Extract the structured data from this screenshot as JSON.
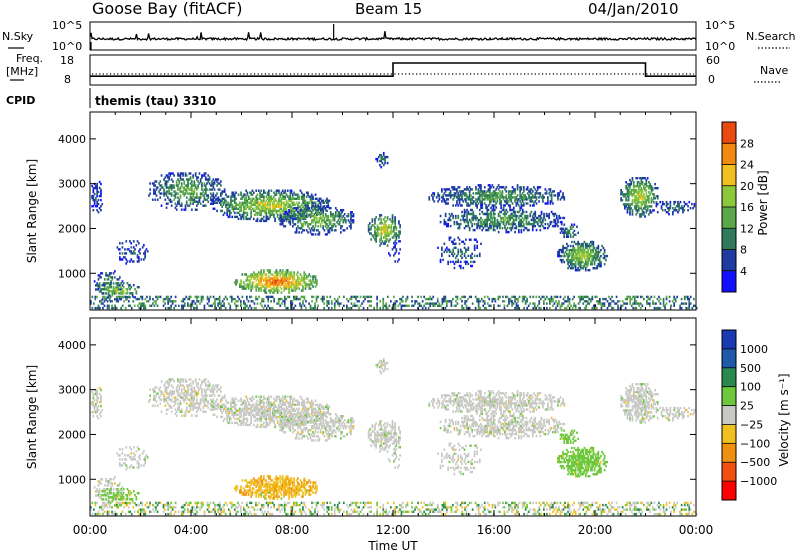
{
  "header": {
    "station": "Goose Bay (fitACF)",
    "beam": "Beam 15",
    "date": "04/Jan/2010"
  },
  "nsky_panel": {
    "label": "N.Sky",
    "right_label": "N.Search",
    "left_ticks": [
      "10^5",
      "10^0"
    ],
    "right_ticks": [
      "10^5",
      "10^0"
    ]
  },
  "freq_panel": {
    "label_line1": "Freq.",
    "label_line2": "[MHz]",
    "right_label": "Nave",
    "left_ticks": [
      "18",
      "8"
    ],
    "right_ticks": [
      "60",
      "0"
    ]
  },
  "cpid": {
    "label": "CPID",
    "value": "themis (tau) 3310"
  },
  "colors": {
    "power_scale": [
      "#1010ff",
      "#1e3ca0",
      "#2e7a5a",
      "#5aa848",
      "#8cc83c",
      "#f0c020",
      "#f08a10",
      "#e84a10",
      "#ff0000"
    ],
    "velocity_scale": [
      "#1a3ab4",
      "#1e5aa8",
      "#2a8a4e",
      "#6ec83c",
      "#c8c8c4",
      "#f0c020",
      "#f09010",
      "#f05010",
      "#ff0000"
    ]
  },
  "chart_data": [
    {
      "type": "heatmap",
      "name": "power",
      "ylabel": "Slant Range [km]",
      "yticks": [
        1000,
        2000,
        3000,
        4000
      ],
      "ylim": [
        180,
        4600
      ],
      "xlim": [
        0,
        24
      ],
      "colorbar_label": "Power [dB]",
      "colorbar_ticks": [
        "28",
        "24",
        "20",
        "16",
        "12",
        "8",
        "4"
      ],
      "colorbar_range": [
        0,
        32
      ]
    },
    {
      "type": "heatmap",
      "name": "velocity",
      "ylabel": "Slant Range [km]",
      "yticks": [
        1000,
        2000,
        3000,
        4000
      ],
      "ylim": [
        180,
        4600
      ],
      "xlim": [
        0,
        24
      ],
      "colorbar_label": "Velocity [m s⁻¹]",
      "colorbar_ticks": [
        "1000",
        "500",
        "100",
        "25",
        "−25",
        "−100",
        "−500",
        "−1000"
      ],
      "xlabel": "Time UT",
      "xticks": [
        "00:00",
        "04:00",
        "08:00",
        "12:00",
        "16:00",
        "20:00",
        "00:00"
      ]
    }
  ],
  "frequency_trace": {
    "segments": [
      {
        "t0": 0,
        "t1": 12,
        "mhz": 10
      },
      {
        "t0": 12,
        "t1": 22,
        "mhz": 15.5
      },
      {
        "t0": 22,
        "t1": 24,
        "mhz": 10
      }
    ]
  }
}
